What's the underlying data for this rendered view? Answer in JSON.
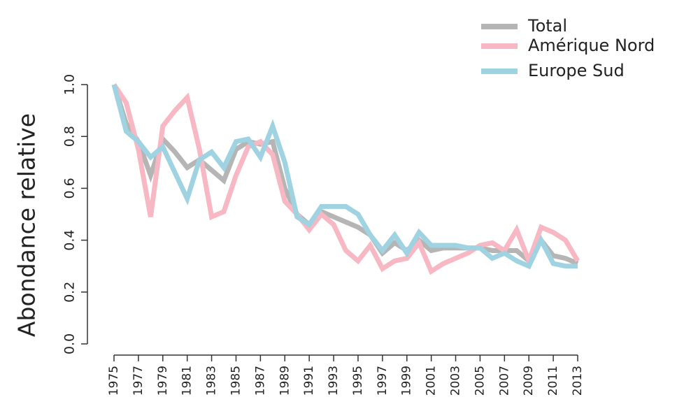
{
  "chart_data": {
    "type": "line",
    "ylabel": "Abondance relative",
    "x": [
      1975,
      1976,
      1977,
      1978,
      1979,
      1980,
      1981,
      1982,
      1983,
      1984,
      1985,
      1986,
      1987,
      1988,
      1989,
      1990,
      1991,
      1992,
      1993,
      1994,
      1995,
      1996,
      1997,
      1998,
      1999,
      2000,
      2001,
      2002,
      2003,
      2004,
      2005,
      2006,
      2007,
      2008,
      2009,
      2010,
      2011,
      2012,
      2013
    ],
    "series": [
      {
        "name": "Total",
        "color": "#b5b5b5",
        "values": [
          1.0,
          0.85,
          0.78,
          0.65,
          0.79,
          0.74,
          0.68,
          0.71,
          0.67,
          0.63,
          0.75,
          0.78,
          0.77,
          0.78,
          0.6,
          0.5,
          0.46,
          0.51,
          0.49,
          0.47,
          0.45,
          0.42,
          0.35,
          0.39,
          0.36,
          0.4,
          0.36,
          0.37,
          0.37,
          0.37,
          0.37,
          0.36,
          0.36,
          0.36,
          0.32,
          0.4,
          0.34,
          0.33,
          0.31
        ]
      },
      {
        "name": "Amérique Nord",
        "color": "#f7b7c3",
        "values": [
          1.0,
          0.93,
          0.75,
          0.49,
          0.84,
          0.9,
          0.95,
          0.75,
          0.49,
          0.51,
          0.65,
          0.76,
          0.78,
          0.73,
          0.55,
          0.5,
          0.44,
          0.5,
          0.46,
          0.36,
          0.32,
          0.38,
          0.29,
          0.32,
          0.33,
          0.39,
          0.28,
          0.31,
          0.33,
          0.35,
          0.38,
          0.39,
          0.36,
          0.44,
          0.32,
          0.45,
          0.43,
          0.4,
          0.32
        ]
      },
      {
        "name": "Europe Sud",
        "color": "#a0d3e1",
        "values": [
          1.0,
          0.82,
          0.78,
          0.72,
          0.76,
          0.66,
          0.56,
          0.71,
          0.74,
          0.68,
          0.78,
          0.79,
          0.72,
          0.84,
          0.7,
          0.49,
          0.46,
          0.53,
          0.53,
          0.53,
          0.5,
          0.42,
          0.36,
          0.42,
          0.35,
          0.43,
          0.38,
          0.38,
          0.38,
          0.37,
          0.37,
          0.33,
          0.35,
          0.32,
          0.3,
          0.4,
          0.31,
          0.3,
          0.3
        ]
      }
    ],
    "xlim": [
      1975,
      2013
    ],
    "xticks": [
      1975,
      1977,
      1979,
      1981,
      1983,
      1985,
      1987,
      1989,
      1991,
      1993,
      1995,
      1997,
      1999,
      2001,
      2003,
      2005,
      2007,
      2009,
      2011,
      2013
    ],
    "ylim": [
      0,
      1
    ],
    "yticks": [
      {
        "value": 0,
        "label": "0.0"
      },
      0.2,
      0.4,
      0.6,
      0.8,
      {
        "value": 1,
        "label": "1.0"
      }
    ],
    "legend": "top-right"
  }
}
